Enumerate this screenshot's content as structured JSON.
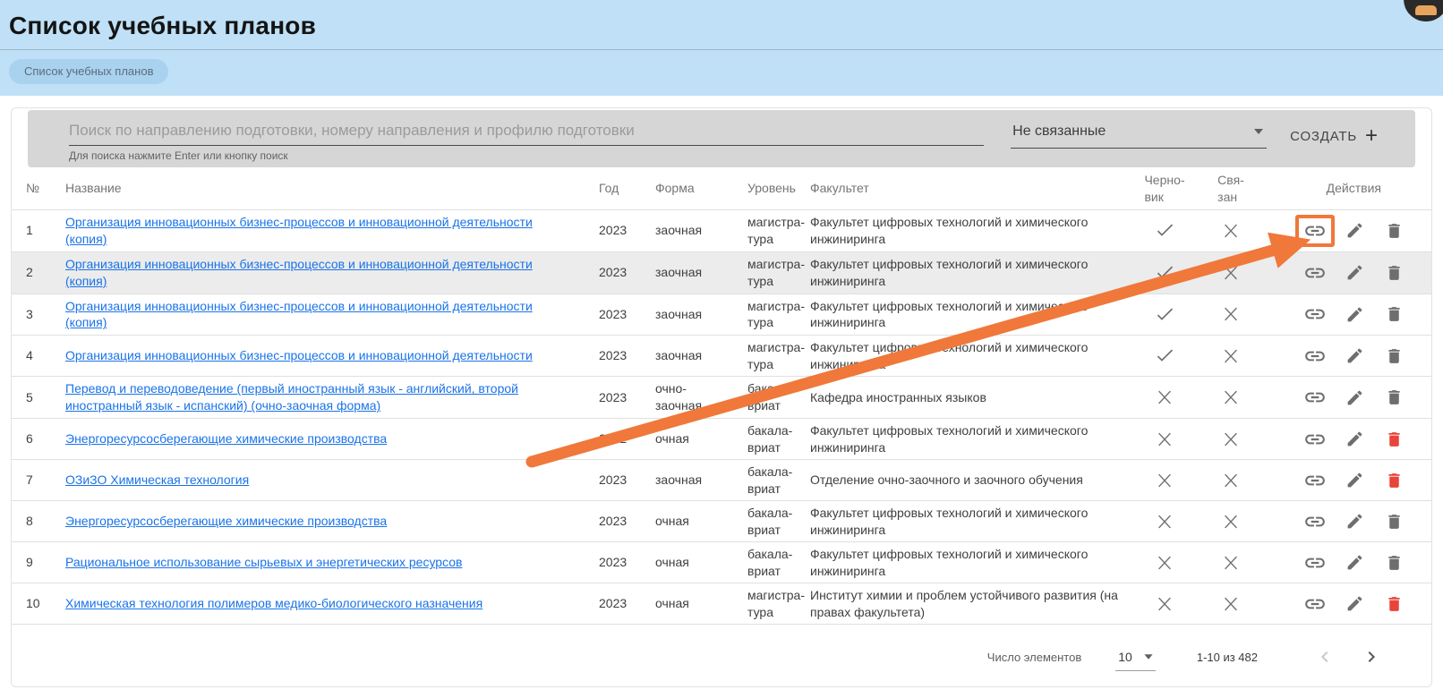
{
  "page": {
    "title": "Список учебных планов",
    "breadcrumb_chip": "Список учебных планов"
  },
  "toolbar": {
    "search_placeholder": "Поиск по направлению подготовки, номеру направления и профилю подготовки",
    "search_hint": "Для поиска нажмите Enter или кнопку поиск",
    "filter_value": "Не связанные",
    "create_label": "СОЗДАТЬ",
    "create_plus": "+"
  },
  "table": {
    "headers": {
      "num": "№",
      "name": "Название",
      "year": "Год",
      "form": "Форма",
      "level_lines": [
        "Уровень"
      ],
      "faculty": "Факультет",
      "draft_lines": [
        "Черно-",
        "вик"
      ],
      "linked_lines": [
        "Свя-",
        "зан"
      ],
      "actions": "Действия"
    },
    "rows": [
      {
        "num": "1",
        "name": "Организация инновационных бизнес-процессов и инновационной деятельности (копия)",
        "year": "2023",
        "form": "заочная",
        "level_lines": [
          "магистра-",
          "тура"
        ],
        "faculty": "Факультет цифровых технологий и химического инжиниринга",
        "draft": "check",
        "linked": "x",
        "trash_red": false,
        "highlighted": true,
        "striped": false
      },
      {
        "num": "2",
        "name": "Организация инновационных бизнес-процессов и инновационной деятельности (копия)",
        "year": "2023",
        "form": "заочная",
        "level_lines": [
          "магистра-",
          "тура"
        ],
        "faculty": "Факультет цифровых технологий и химического инжиниринга",
        "draft": "check",
        "linked": "x",
        "trash_red": false,
        "highlighted": false,
        "striped": true
      },
      {
        "num": "3",
        "name": "Организация инновационных бизнес-процессов и инновационной деятельности (копия)",
        "year": "2023",
        "form": "заочная",
        "level_lines": [
          "магистра-",
          "тура"
        ],
        "faculty": "Факультет цифровых технологий и химического инжиниринга",
        "draft": "check",
        "linked": "x",
        "trash_red": false,
        "highlighted": false,
        "striped": false
      },
      {
        "num": "4",
        "name": "Организация инновационных бизнес-процессов и инновационной деятельности",
        "year": "2023",
        "form": "заочная",
        "level_lines": [
          "магистра-",
          "тура"
        ],
        "faculty": "Факультет цифровых технологий и химического инжиниринга",
        "draft": "check",
        "linked": "x",
        "trash_red": false,
        "highlighted": false,
        "striped": false
      },
      {
        "num": "5",
        "name": "Перевод и переводоведение (первый иностранный язык - английский, второй иностран­ный язык - испанский) (очно-заочная форма)",
        "year": "2023",
        "form": "очно-заочная",
        "level_lines": [
          "бакала-",
          "вриат"
        ],
        "faculty": "Кафедра иностранных языков",
        "draft": "x",
        "linked": "x",
        "trash_red": false,
        "highlighted": false,
        "striped": false
      },
      {
        "num": "6",
        "name": "Энергоресурсосберегающие химические производства",
        "year": "2022",
        "form": "очная",
        "level_lines": [
          "бакала-",
          "вриат"
        ],
        "faculty": "Факультет цифровых технологий и химического инжиниринга",
        "draft": "x",
        "linked": "x",
        "trash_red": true,
        "highlighted": false,
        "striped": false
      },
      {
        "num": "7",
        "name": "ОЗиЗО Химическая технология",
        "year": "2023",
        "form": "заочная",
        "level_lines": [
          "бакала-",
          "вриат"
        ],
        "faculty": "Отделение очно-заочного и заочного обучения",
        "draft": "x",
        "linked": "x",
        "trash_red": true,
        "highlighted": false,
        "striped": false
      },
      {
        "num": "8",
        "name": "Энергоресурсосберегающие химические производства",
        "year": "2023",
        "form": "очная",
        "level_lines": [
          "бакала-",
          "вриат"
        ],
        "faculty": "Факультет цифровых технологий и химического инжиниринга",
        "draft": "x",
        "linked": "x",
        "trash_red": false,
        "highlighted": false,
        "striped": false
      },
      {
        "num": "9",
        "name": "Рациональное использование сырьевых и энергетических ресурсов",
        "year": "2023",
        "form": "очная",
        "level_lines": [
          "бакала-",
          "вриат"
        ],
        "faculty": "Факультет цифровых технологий и химического инжиниринга",
        "draft": "x",
        "linked": "x",
        "trash_red": false,
        "highlighted": false,
        "striped": false
      },
      {
        "num": "10",
        "name": "Химическая технология полимеров медико-биологического назначения",
        "year": "2023",
        "form": "очная",
        "level_lines": [
          "магистра-",
          "тура"
        ],
        "faculty": "Институт химии и проблем устойчивого развития (на правах факультета)",
        "draft": "x",
        "linked": "x",
        "trash_red": true,
        "highlighted": false,
        "striped": false
      }
    ]
  },
  "pagination": {
    "label": "Число элементов",
    "page_size": "10",
    "range": "1-10 из 482"
  },
  "icons": [
    "link-icon",
    "pencil-icon",
    "trash-icon",
    "check-icon",
    "x-icon",
    "chevron-left-icon",
    "chevron-right-icon",
    "caret-down-icon",
    "plus-icon",
    "avatar"
  ],
  "annotation": {
    "arrow_color": "#F0783A",
    "highlight_color": "#F0783A",
    "highlighted_row": "1",
    "highlighted_action": "link"
  },
  "colors": {
    "banner_bg": "#BFE0F6",
    "chip_bg": "#A9D2EF",
    "search_panel_bg": "#D6D6D6",
    "link_blue": "#1A73E8",
    "danger_red": "#E8443A",
    "icon_grey": "#6E6E6E",
    "striped_row_bg": "#ECECEC"
  }
}
